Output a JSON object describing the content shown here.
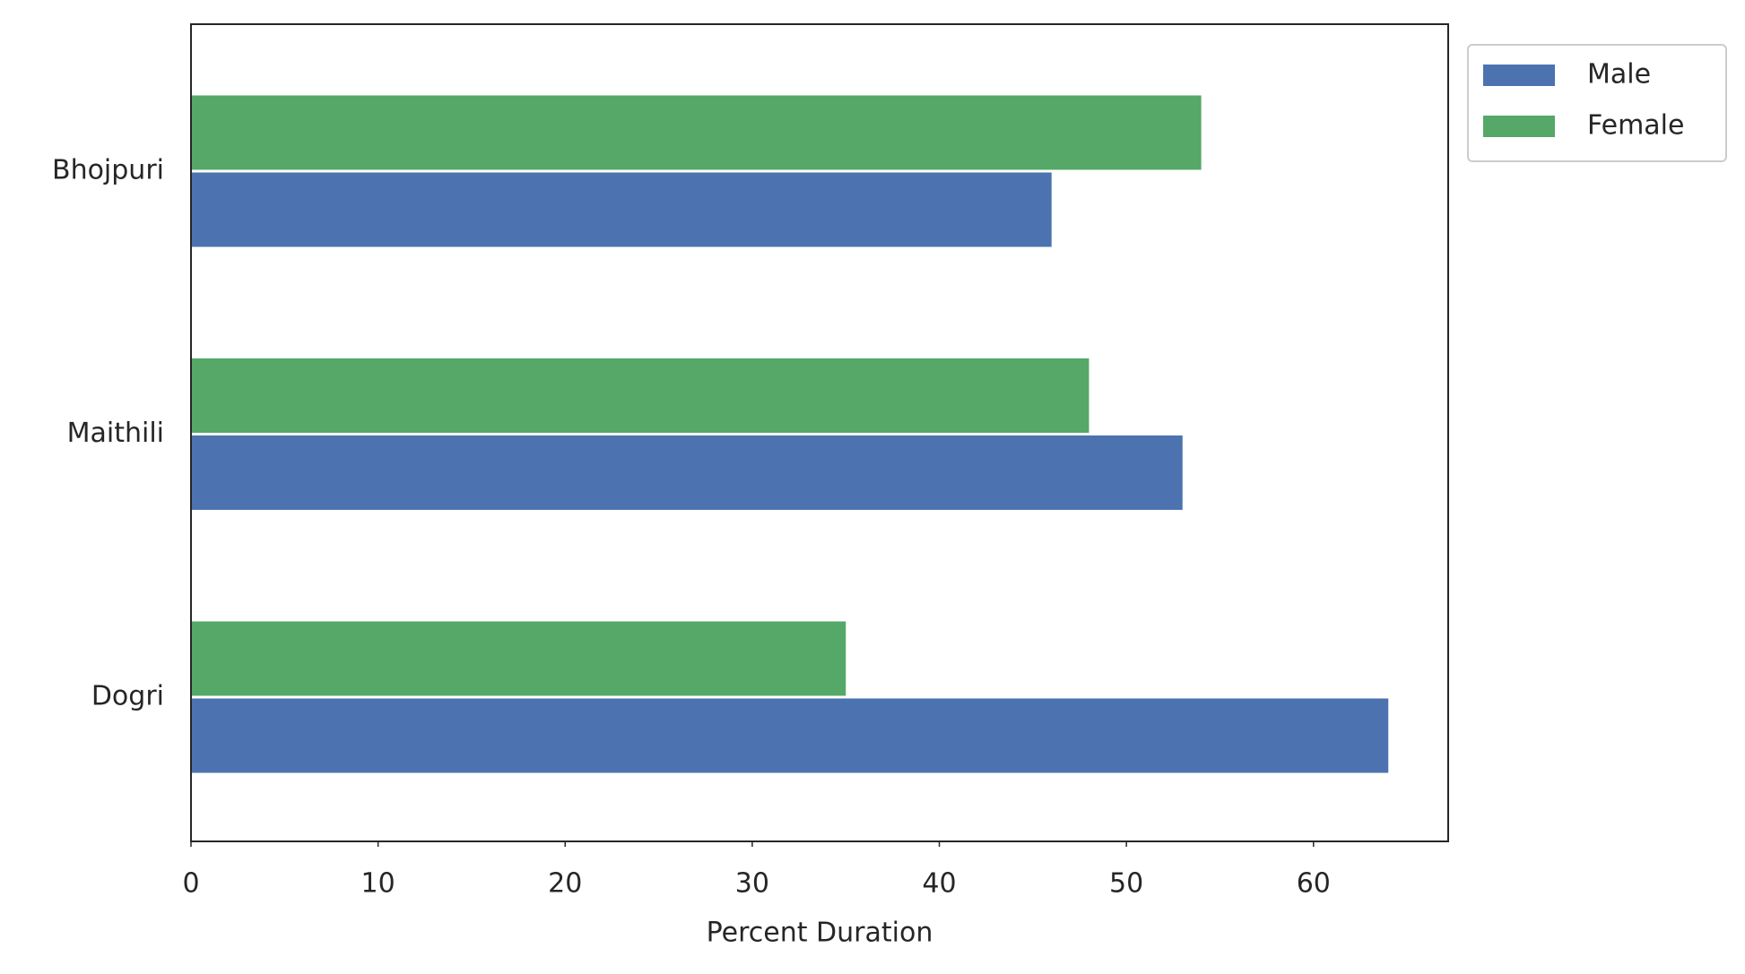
{
  "chart_data": {
    "type": "barh",
    "categories": [
      "Bhojpuri",
      "Maithili",
      "Dogri"
    ],
    "series": [
      {
        "name": "Male",
        "color": "#4c72b0",
        "values": [
          46,
          53,
          64
        ]
      },
      {
        "name": "Female",
        "color": "#55a868",
        "values": [
          54,
          48,
          35
        ]
      }
    ],
    "xlabel": "Percent Duration",
    "xlim": [
      0,
      67.2
    ],
    "xticks": [
      0,
      10,
      20,
      30,
      40,
      50,
      60
    ],
    "grid": false,
    "legend": "outside upper right"
  }
}
